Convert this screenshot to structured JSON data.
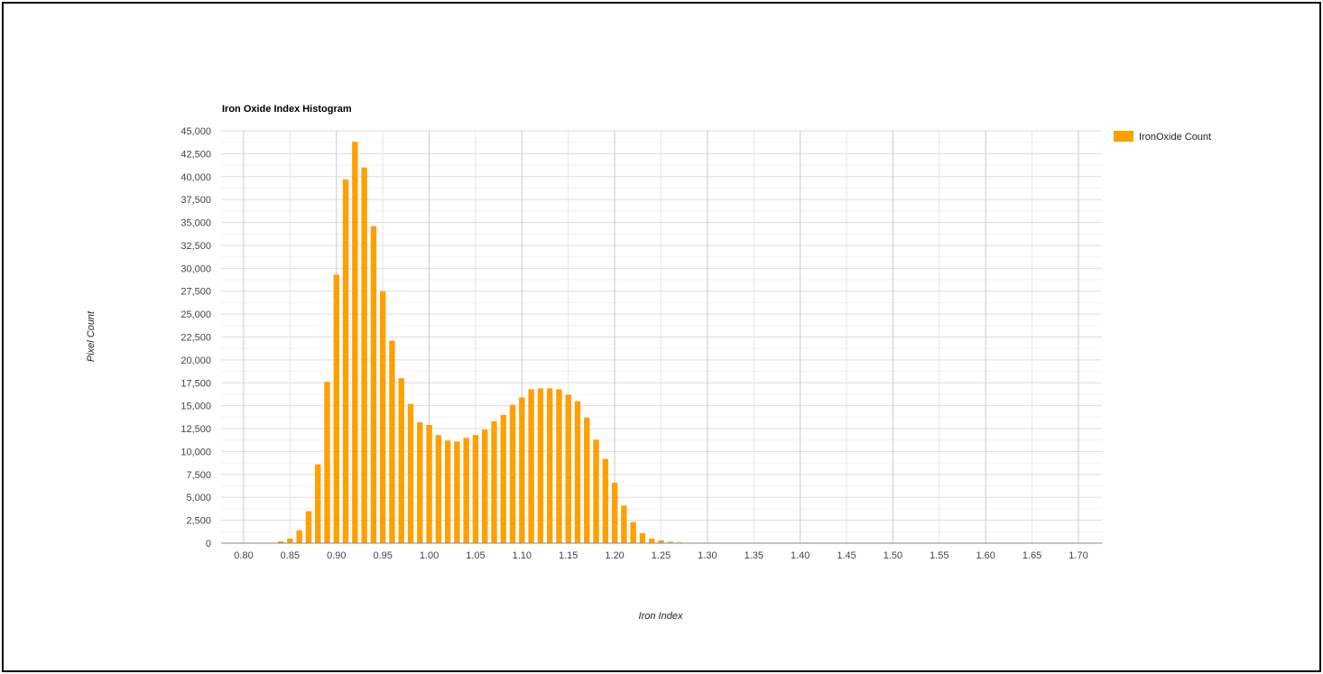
{
  "chart_data": {
    "type": "bar",
    "title": "Iron Oxide Index Histogram",
    "xlabel": "Iron Index",
    "ylabel": "Pixel Count",
    "xlim": [
      0.8,
      1.7
    ],
    "ylim": [
      0,
      45000
    ],
    "x_ticks": [
      "0.80",
      "0.85",
      "0.90",
      "0.95",
      "1.00",
      "1.05",
      "1.10",
      "1.15",
      "1.20",
      "1.25",
      "1.30",
      "1.35",
      "1.40",
      "1.45",
      "1.50",
      "1.55",
      "1.60",
      "1.65",
      "1.70"
    ],
    "y_ticks": [
      "0",
      "2,500",
      "5,000",
      "7,500",
      "10,000",
      "12,500",
      "15,000",
      "17,500",
      "20,000",
      "22,500",
      "25,000",
      "27,500",
      "30,000",
      "32,500",
      "35,000",
      "37,500",
      "40,000",
      "42,500",
      "45,000"
    ],
    "grid": true,
    "legend_position": "right",
    "series": [
      {
        "name": "IronOxide Count",
        "color": "#ffa000",
        "x": [
          0.83,
          0.84,
          0.85,
          0.86,
          0.87,
          0.88,
          0.89,
          0.9,
          0.91,
          0.92,
          0.93,
          0.94,
          0.95,
          0.96,
          0.97,
          0.98,
          0.99,
          1.0,
          1.01,
          1.02,
          1.03,
          1.04,
          1.05,
          1.06,
          1.07,
          1.08,
          1.09,
          1.1,
          1.11,
          1.12,
          1.13,
          1.14,
          1.15,
          1.16,
          1.17,
          1.18,
          1.19,
          1.2,
          1.21,
          1.22,
          1.23,
          1.24,
          1.25,
          1.26,
          1.27,
          1.28,
          1.29
        ],
        "values": [
          50,
          200,
          500,
          1400,
          3500,
          8600,
          17600,
          29300,
          39700,
          43800,
          41000,
          34600,
          27500,
          22100,
          18000,
          15200,
          13200,
          12900,
          11800,
          11200,
          11100,
          11500,
          11800,
          12400,
          13300,
          14000,
          15100,
          15900,
          16800,
          16900,
          16900,
          16800,
          16200,
          15500,
          13700,
          11300,
          9200,
          6600,
          4100,
          2300,
          1100,
          500,
          300,
          150,
          80,
          40,
          20
        ]
      }
    ]
  }
}
